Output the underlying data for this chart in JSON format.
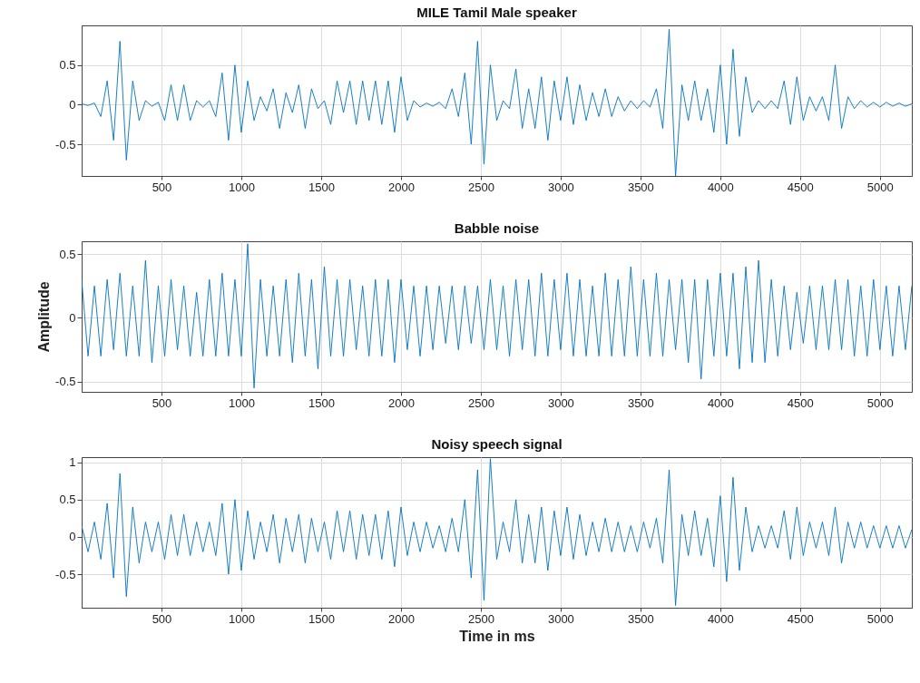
{
  "chart_data": [
    {
      "type": "line",
      "title": "MILE Tamil Male speaker",
      "xlim": [
        0,
        5200
      ],
      "xticks": [
        500,
        1000,
        1500,
        2000,
        2500,
        3000,
        3500,
        4000,
        4500,
        5000
      ],
      "ylim": [
        -0.9,
        1
      ],
      "yticks": [
        -0.5,
        0,
        0.5
      ],
      "grid": true,
      "line_style": "solid",
      "x": [
        0,
        40,
        80,
        120,
        160,
        200,
        240,
        280,
        320,
        360,
        400,
        440,
        480,
        520,
        560,
        600,
        640,
        680,
        720,
        760,
        800,
        840,
        880,
        920,
        960,
        1000,
        1040,
        1080,
        1120,
        1160,
        1200,
        1240,
        1280,
        1320,
        1360,
        1400,
        1440,
        1480,
        1520,
        1560,
        1600,
        1640,
        1680,
        1720,
        1760,
        1800,
        1840,
        1880,
        1920,
        1960,
        2000,
        2040,
        2080,
        2120,
        2160,
        2200,
        2240,
        2280,
        2320,
        2360,
        2400,
        2440,
        2480,
        2520,
        2560,
        2600,
        2640,
        2680,
        2720,
        2760,
        2800,
        2840,
        2880,
        2920,
        2960,
        3000,
        3040,
        3080,
        3120,
        3160,
        3200,
        3240,
        3280,
        3320,
        3360,
        3400,
        3440,
        3480,
        3520,
        3560,
        3600,
        3640,
        3680,
        3720,
        3760,
        3800,
        3840,
        3880,
        3920,
        3960,
        4000,
        4040,
        4080,
        4120,
        4160,
        4200,
        4240,
        4280,
        4320,
        4360,
        4400,
        4440,
        4480,
        4520,
        4560,
        4600,
        4640,
        4680,
        4720,
        4760,
        4800,
        4840,
        4880,
        4920,
        4960,
        5000,
        5040,
        5080,
        5120,
        5160,
        5200
      ],
      "series": [
        {
          "color": "#0072bd",
          "values": [
            0.01,
            -0.01,
            0.02,
            -0.15,
            0.3,
            -0.45,
            0.8,
            -0.7,
            0.3,
            -0.2,
            0.05,
            -0.02,
            0.03,
            -0.2,
            0.25,
            -0.2,
            0.25,
            -0.2,
            0.05,
            -0.03,
            0.05,
            -0.15,
            0.4,
            -0.45,
            0.5,
            -0.35,
            0.3,
            -0.2,
            0.1,
            -0.08,
            0.2,
            -0.3,
            0.15,
            -0.1,
            0.25,
            -0.3,
            0.2,
            -0.05,
            0.05,
            -0.25,
            0.3,
            -0.1,
            0.3,
            -0.25,
            0.3,
            -0.2,
            0.3,
            -0.25,
            0.3,
            -0.35,
            0.35,
            -0.2,
            0.05,
            -0.03,
            0.02,
            -0.02,
            0.03,
            -0.05,
            0.2,
            -0.15,
            0.4,
            -0.5,
            0.8,
            -0.75,
            0.5,
            -0.2,
            0.05,
            -0.05,
            0.45,
            -0.3,
            0.2,
            -0.3,
            0.35,
            -0.45,
            0.3,
            -0.2,
            0.35,
            -0.25,
            0.25,
            -0.2,
            0.15,
            -0.15,
            0.2,
            -0.15,
            0.1,
            -0.08,
            0.05,
            -0.05,
            0.05,
            -0.03,
            0.2,
            -0.3,
            0.95,
            -0.9,
            0.25,
            -0.2,
            0.3,
            -0.2,
            0.2,
            -0.35,
            0.5,
            -0.5,
            0.7,
            -0.4,
            0.35,
            -0.1,
            0.05,
            -0.05,
            0.05,
            -0.05,
            0.3,
            -0.25,
            0.35,
            -0.2,
            0.1,
            -0.08,
            0.1,
            -0.2,
            0.5,
            -0.3,
            0.1,
            -0.05,
            0.05,
            -0.03,
            0.03,
            -0.03,
            0.03,
            -0.02,
            0.02,
            -0.02,
            0.01
          ]
        }
      ]
    },
    {
      "type": "line",
      "title": "Babble noise",
      "ylabel": "Amplitude",
      "xlim": [
        0,
        5200
      ],
      "xticks": [
        500,
        1000,
        1500,
        2000,
        2500,
        3000,
        3500,
        4000,
        4500,
        5000
      ],
      "ylim": [
        -0.58,
        0.6
      ],
      "yticks": [
        -0.5,
        0,
        0.5
      ],
      "grid": true,
      "line_style": "solid",
      "x": [
        0,
        40,
        80,
        120,
        160,
        200,
        240,
        280,
        320,
        360,
        400,
        440,
        480,
        520,
        560,
        600,
        640,
        680,
        720,
        760,
        800,
        840,
        880,
        920,
        960,
        1000,
        1040,
        1080,
        1120,
        1160,
        1200,
        1240,
        1280,
        1320,
        1360,
        1400,
        1440,
        1480,
        1520,
        1560,
        1600,
        1640,
        1680,
        1720,
        1760,
        1800,
        1840,
        1880,
        1920,
        1960,
        2000,
        2040,
        2080,
        2120,
        2160,
        2200,
        2240,
        2280,
        2320,
        2360,
        2400,
        2440,
        2480,
        2520,
        2560,
        2600,
        2640,
        2680,
        2720,
        2760,
        2800,
        2840,
        2880,
        2920,
        2960,
        3000,
        3040,
        3080,
        3120,
        3160,
        3200,
        3240,
        3280,
        3320,
        3360,
        3400,
        3440,
        3480,
        3520,
        3560,
        3600,
        3640,
        3680,
        3720,
        3760,
        3800,
        3840,
        3880,
        3920,
        3960,
        4000,
        4040,
        4080,
        4120,
        4160,
        4200,
        4240,
        4280,
        4320,
        4360,
        4400,
        4440,
        4480,
        4520,
        4560,
        4600,
        4640,
        4680,
        4720,
        4760,
        4800,
        4840,
        4880,
        4920,
        4960,
        5000,
        5040,
        5080,
        5120,
        5160,
        5200
      ],
      "series": [
        {
          "color": "#0072bd",
          "values": [
            0.3,
            -0.3,
            0.25,
            -0.3,
            0.3,
            -0.25,
            0.35,
            -0.3,
            0.25,
            -0.3,
            0.45,
            -0.35,
            0.25,
            -0.3,
            0.3,
            -0.25,
            0.25,
            -0.3,
            0.2,
            -0.3,
            0.3,
            -0.3,
            0.35,
            -0.3,
            0.3,
            -0.3,
            0.58,
            -0.55,
            0.3,
            -0.3,
            0.25,
            -0.3,
            0.3,
            -0.35,
            0.35,
            -0.3,
            0.3,
            -0.4,
            0.4,
            -0.3,
            0.3,
            -0.3,
            0.3,
            -0.25,
            0.25,
            -0.3,
            0.3,
            -0.3,
            0.3,
            -0.35,
            0.3,
            -0.25,
            0.25,
            -0.3,
            0.25,
            -0.25,
            0.25,
            -0.2,
            0.25,
            -0.25,
            0.25,
            -0.2,
            0.25,
            -0.25,
            0.3,
            -0.25,
            0.25,
            -0.3,
            0.3,
            -0.25,
            0.3,
            -0.3,
            0.35,
            -0.3,
            0.3,
            -0.25,
            0.35,
            -0.3,
            0.3,
            -0.3,
            0.25,
            -0.3,
            0.35,
            -0.3,
            0.3,
            -0.3,
            0.4,
            -0.3,
            0.3,
            -0.3,
            0.35,
            -0.3,
            0.3,
            -0.25,
            0.3,
            -0.35,
            0.3,
            -0.48,
            0.3,
            -0.3,
            0.35,
            -0.3,
            0.35,
            -0.4,
            0.4,
            -0.35,
            0.45,
            -0.35,
            0.3,
            -0.3,
            0.25,
            -0.25,
            0.2,
            -0.2,
            0.25,
            -0.25,
            0.25,
            -0.25,
            0.3,
            -0.25,
            0.3,
            -0.3,
            0.25,
            -0.3,
            0.3,
            -0.25,
            0.25,
            -0.3,
            0.25,
            -0.25,
            0.25
          ]
        }
      ]
    },
    {
      "type": "line",
      "title": "Noisy speech signal",
      "xlabel": "Time in ms",
      "xlim": [
        0,
        5200
      ],
      "xticks": [
        500,
        1000,
        1500,
        2000,
        2500,
        3000,
        3500,
        4000,
        4500,
        5000
      ],
      "ylim": [
        -0.95,
        1.07
      ],
      "yticks": [
        -0.5,
        0,
        0.5,
        1
      ],
      "grid": true,
      "line_style": "solid",
      "x": [
        0,
        40,
        80,
        120,
        160,
        200,
        240,
        280,
        320,
        360,
        400,
        440,
        480,
        520,
        560,
        600,
        640,
        680,
        720,
        760,
        800,
        840,
        880,
        920,
        960,
        1000,
        1040,
        1080,
        1120,
        1160,
        1200,
        1240,
        1280,
        1320,
        1360,
        1400,
        1440,
        1480,
        1520,
        1560,
        1600,
        1640,
        1680,
        1720,
        1760,
        1800,
        1840,
        1880,
        1920,
        1960,
        2000,
        2040,
        2080,
        2120,
        2160,
        2200,
        2240,
        2280,
        2320,
        2360,
        2400,
        2440,
        2480,
        2520,
        2560,
        2600,
        2640,
        2680,
        2720,
        2760,
        2800,
        2840,
        2880,
        2920,
        2960,
        3000,
        3040,
        3080,
        3120,
        3160,
        3200,
        3240,
        3280,
        3320,
        3360,
        3400,
        3440,
        3480,
        3520,
        3560,
        3600,
        3640,
        3680,
        3720,
        3760,
        3800,
        3840,
        3880,
        3920,
        3960,
        4000,
        4040,
        4080,
        4120,
        4160,
        4200,
        4240,
        4280,
        4320,
        4360,
        4400,
        4440,
        4480,
        4520,
        4560,
        4600,
        4640,
        4680,
        4720,
        4760,
        4800,
        4840,
        4880,
        4920,
        4960,
        5000,
        5040,
        5080,
        5120,
        5160,
        5200
      ],
      "series": [
        {
          "color": "#0072bd",
          "values": [
            0.15,
            -0.2,
            0.2,
            -0.3,
            0.45,
            -0.55,
            0.85,
            -0.8,
            0.4,
            -0.35,
            0.2,
            -0.2,
            0.2,
            -0.3,
            0.3,
            -0.25,
            0.3,
            -0.25,
            0.2,
            -0.2,
            0.2,
            -0.25,
            0.45,
            -0.5,
            0.5,
            -0.45,
            0.35,
            -0.3,
            0.2,
            -0.2,
            0.3,
            -0.35,
            0.25,
            -0.2,
            0.3,
            -0.35,
            0.25,
            -0.2,
            0.2,
            -0.3,
            0.35,
            -0.2,
            0.35,
            -0.3,
            0.3,
            -0.25,
            0.3,
            -0.3,
            0.35,
            -0.4,
            0.4,
            -0.25,
            0.2,
            -0.2,
            0.2,
            -0.15,
            0.15,
            -0.2,
            0.25,
            -0.2,
            0.5,
            -0.55,
            0.9,
            -0.85,
            1.05,
            -0.3,
            0.2,
            -0.2,
            0.5,
            -0.35,
            0.3,
            -0.35,
            0.4,
            -0.45,
            0.35,
            -0.25,
            0.4,
            -0.3,
            0.3,
            -0.25,
            0.2,
            -0.2,
            0.25,
            -0.2,
            0.2,
            -0.2,
            0.15,
            -0.2,
            0.2,
            -0.15,
            0.25,
            -0.35,
            0.9,
            -0.92,
            0.3,
            -0.25,
            0.35,
            -0.25,
            0.25,
            -0.4,
            0.55,
            -0.6,
            0.8,
            -0.45,
            0.4,
            -0.2,
            0.15,
            -0.15,
            0.15,
            -0.15,
            0.35,
            -0.3,
            0.4,
            -0.25,
            0.2,
            -0.15,
            0.2,
            -0.25,
            0.4,
            -0.35,
            0.2,
            -0.15,
            0.2,
            -0.15,
            0.15,
            -0.15,
            0.15,
            -0.15,
            0.15,
            -0.15,
            0.1
          ]
        }
      ]
    }
  ]
}
